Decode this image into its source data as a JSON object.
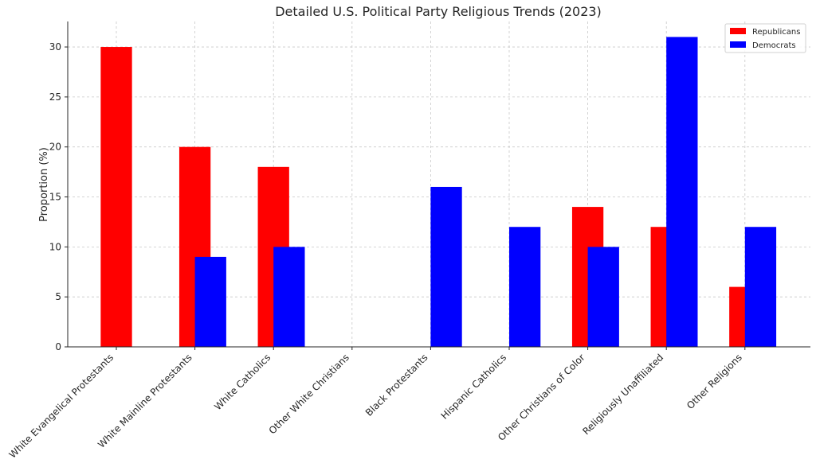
{
  "chart_data": {
    "type": "bar",
    "title": "Detailed U.S. Political Party Religious Trends (2023)",
    "xlabel": "",
    "ylabel": "Proportion (%)",
    "ylim": [
      0,
      32.55
    ],
    "yticks": [
      0,
      5,
      10,
      15,
      20,
      25,
      30
    ],
    "grid": true,
    "legend_position": "top-right",
    "categories": [
      "White Evangelical Protestants",
      "White Mainline Protestants",
      "White Catholics",
      "Other White Christians",
      "Black Protestants",
      "Hispanic Catholics",
      "Other Christians of Color",
      "Religiously Unaffiliated",
      "Other Religions"
    ],
    "series": [
      {
        "name": "Republicans",
        "color": "#ff0000",
        "values": [
          30,
          20,
          18,
          0,
          0,
          0,
          14,
          12,
          6
        ]
      },
      {
        "name": "Democrats",
        "color": "#0000ff",
        "values": [
          0,
          9,
          10,
          0,
          16,
          12,
          10,
          31,
          12
        ]
      }
    ]
  }
}
